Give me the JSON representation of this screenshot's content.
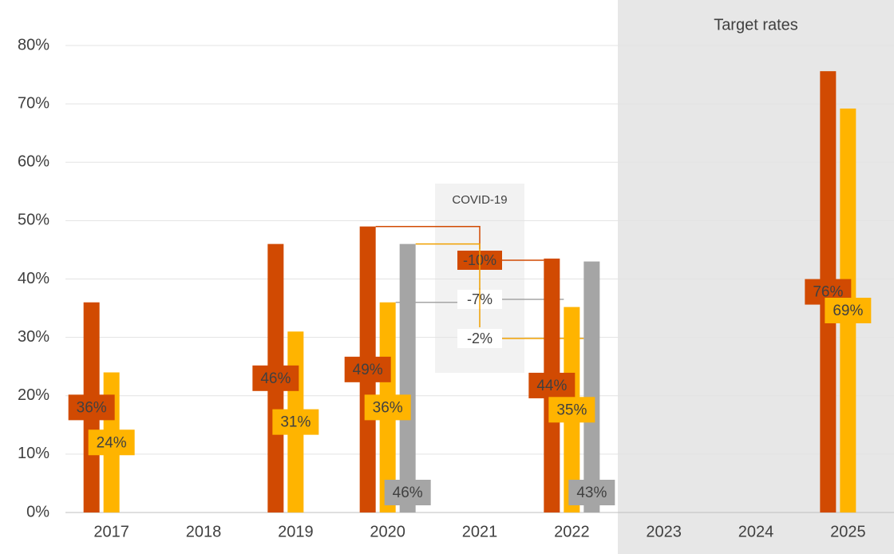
{
  "chart_data": {
    "type": "bar",
    "categories": [
      "2017",
      "2018",
      "2019",
      "2020",
      "2021",
      "2022",
      "2023",
      "2024",
      "2025"
    ],
    "series": [
      {
        "color": "#d14a02",
        "label_color": "#ffffff",
        "label_position": "middle",
        "values": [
          36,
          null,
          46,
          49,
          null,
          43.5,
          null,
          null,
          75.6
        ],
        "value_labels": [
          "36%",
          null,
          "46%",
          "49%",
          null,
          "44%",
          null,
          null,
          "76%"
        ]
      },
      {
        "color": "#ffb400",
        "label_color": "#000000",
        "label_position": "middle",
        "values": [
          24,
          null,
          31,
          36,
          null,
          35.2,
          null,
          null,
          69.2
        ],
        "value_labels": [
          "24%",
          null,
          "31%",
          "36%",
          null,
          "35%",
          null,
          null,
          "69%"
        ]
      },
      {
        "color": "#a5a5a5",
        "label_color": "#ffffff",
        "label_position": "base",
        "values": [
          null,
          null,
          null,
          46,
          null,
          43,
          null,
          null,
          null
        ],
        "value_labels": [
          null,
          null,
          null,
          "46%",
          null,
          "43%",
          null,
          null,
          null
        ]
      }
    ],
    "ylim": [
      0,
      80
    ],
    "yticks": [
      {
        "value": 0,
        "label": "0%"
      },
      {
        "value": 10,
        "label": "10%"
      },
      {
        "value": 20,
        "label": "20%"
      },
      {
        "value": 30,
        "label": "30%"
      },
      {
        "value": 40,
        "label": "40%"
      },
      {
        "value": 50,
        "label": "50%"
      },
      {
        "value": 60,
        "label": "60%"
      },
      {
        "value": 70,
        "label": "70%"
      },
      {
        "value": 80,
        "label": "80%"
      }
    ],
    "grid": true,
    "target": {
      "label": "Target rates",
      "start": "2023"
    },
    "covid": {
      "label": "COVID-19",
      "category": "2021"
    },
    "change_labels": [
      {
        "text": "-10%",
        "color": "#d14a02"
      },
      {
        "text": "-7%",
        "color": "#a5a5a5"
      },
      {
        "text": "-2%",
        "color": "#f0a000"
      }
    ]
  }
}
